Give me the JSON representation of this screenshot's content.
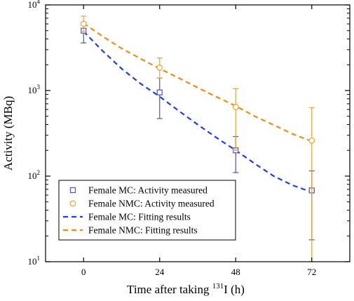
{
  "chart_data": {
    "type": "scatter",
    "xlabel_prefix": "Time after taking ",
    "xlabel_sup": "131",
    "xlabel_suffix": "I (h)",
    "ylabel": "Activity (MBq)",
    "x_ticks": [
      0,
      24,
      48,
      72
    ],
    "xlim": [
      -12,
      84
    ],
    "y_scale": "log",
    "ylim": [
      10,
      10000
    ],
    "y_ticks": [
      {
        "value": 10,
        "base": "10",
        "exp": "1"
      },
      {
        "value": 100,
        "base": "10",
        "exp": "2"
      },
      {
        "value": 1000,
        "base": "10",
        "exp": "3"
      },
      {
        "value": 10000,
        "base": "10",
        "exp": "4"
      }
    ],
    "legend_position": "lower-left",
    "series": [
      {
        "name": "Female MC: Activity measured",
        "kind": "points",
        "marker": "square",
        "color": "#4f4fcf",
        "x": [
          0,
          24,
          48,
          72
        ],
        "y": [
          5000,
          950,
          200,
          68
        ],
        "err_low": [
          3600,
          470,
          110,
          18
        ],
        "err_high": [
          6200,
          1400,
          290,
          115
        ]
      },
      {
        "name": "Female NMC: Activity measured",
        "kind": "points",
        "marker": "circle",
        "color": "#f0a030",
        "x": [
          0,
          24,
          48,
          72
        ],
        "y": [
          6000,
          1850,
          640,
          260
        ],
        "err_low": [
          4900,
          1400,
          200,
          10
        ],
        "err_high": [
          7400,
          2400,
          1050,
          630
        ]
      },
      {
        "name": "Female MC: Fitting results",
        "kind": "fit",
        "color": "#1f3fdc",
        "x": [
          0,
          6,
          12,
          18,
          24,
          30,
          36,
          42,
          48,
          54,
          60,
          66,
          72
        ],
        "y": [
          4900,
          2900,
          1800,
          1200,
          850,
          580,
          400,
          280,
          200,
          140,
          100,
          78,
          65
        ]
      },
      {
        "name": "Female NMC: Fitting results",
        "kind": "fit",
        "color": "#f28a1a",
        "x": [
          0,
          6,
          12,
          18,
          24,
          30,
          36,
          42,
          48,
          54,
          60,
          66,
          72
        ],
        "y": [
          6100,
          4300,
          3100,
          2350,
          1800,
          1400,
          1080,
          840,
          660,
          500,
          395,
          310,
          255
        ]
      }
    ]
  }
}
